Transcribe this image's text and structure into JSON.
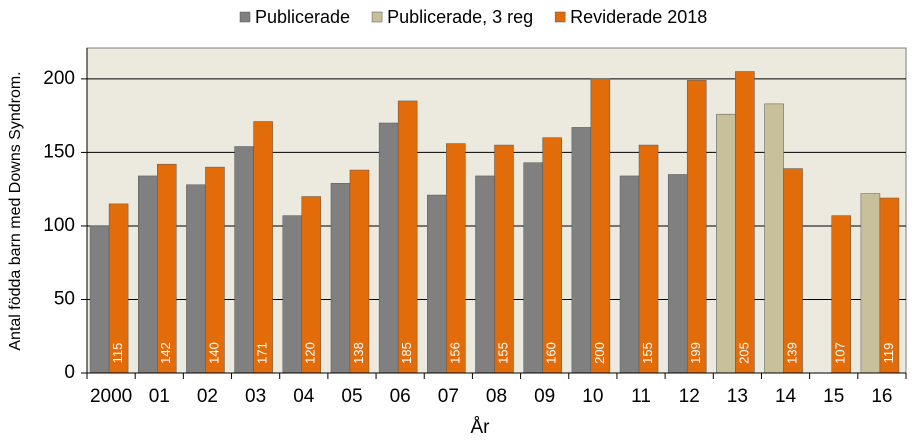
{
  "chart_data": {
    "type": "bar",
    "y_label": "Antal födda barn med Downs Syndrom.",
    "x_label": "År",
    "categories": [
      "2000",
      "01",
      "02",
      "03",
      "04",
      "05",
      "06",
      "07",
      "08",
      "09",
      "10",
      "11",
      "12",
      "13",
      "14",
      "15",
      "16"
    ],
    "series": [
      {
        "name": "Publicerade",
        "color": "#808080",
        "values": [
          100,
          134,
          128,
          154,
          107,
          129,
          170,
          121,
          134,
          143,
          167,
          134,
          135,
          null,
          null,
          null,
          null
        ]
      },
      {
        "name": "Publicerade, 3 reg",
        "color": "#c8bf9b",
        "values": [
          null,
          null,
          null,
          null,
          null,
          null,
          null,
          null,
          null,
          null,
          null,
          null,
          null,
          176,
          183,
          null,
          122
        ]
      },
      {
        "name": "Reviderade 2018",
        "color": "#e36c0a",
        "values": [
          115,
          142,
          140,
          171,
          120,
          138,
          185,
          156,
          155,
          160,
          200,
          155,
          199,
          205,
          139,
          107,
          119
        ]
      }
    ],
    "ylim": [
      0,
      221
    ],
    "yticks": [
      0,
      50,
      100,
      150,
      200
    ],
    "grid": true
  }
}
